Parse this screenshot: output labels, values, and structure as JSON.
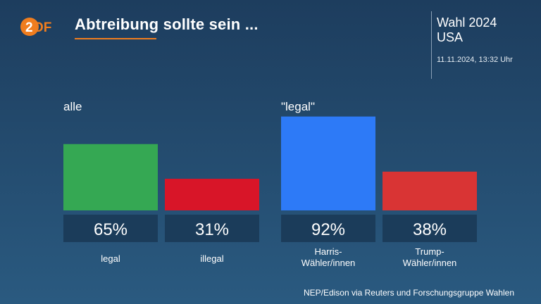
{
  "header": {
    "logo_text": "ZDF",
    "title": "Abtreibung sollte sein ...",
    "event_line1": "Wahl 2024",
    "event_line2": "USA",
    "timestamp": "11.11.2024, 13:32 Uhr"
  },
  "colors": {
    "accent": "#f07d1e",
    "legal": "#35a853",
    "illegal": "#d81528",
    "harris": "#2d7af7",
    "trump": "#d93434",
    "value_box": "#1b3c5a"
  },
  "chart_data": {
    "type": "bar",
    "unit": "%",
    "ylim": [
      0,
      100
    ],
    "groups": [
      {
        "label": "alle",
        "bars": [
          {
            "category": "legal",
            "value": 65,
            "value_label": "65%",
            "color": "#35a853"
          },
          {
            "category": "illegal",
            "value": 31,
            "value_label": "31%",
            "color": "#d81528"
          }
        ]
      },
      {
        "label": "\"legal\"",
        "bars": [
          {
            "category": "Harris-\nWähler/innen",
            "value": 92,
            "value_label": "92%",
            "color": "#2d7af7"
          },
          {
            "category": "Trump-\nWähler/innen",
            "value": 38,
            "value_label": "38%",
            "color": "#d93434"
          }
        ]
      }
    ]
  },
  "source": "NEP/Edison via Reuters und Forschungsgruppe Wahlen"
}
